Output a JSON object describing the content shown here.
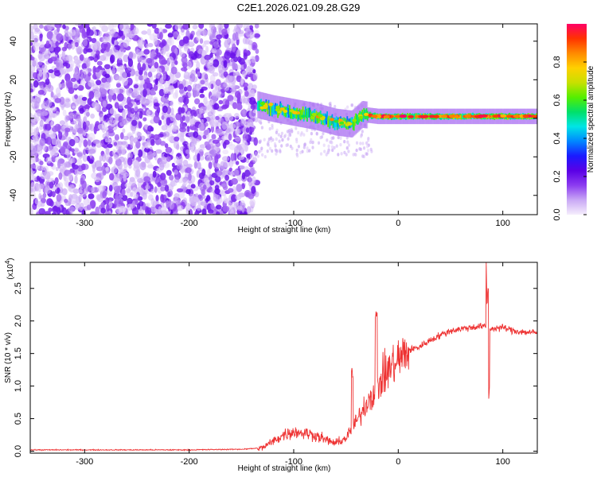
{
  "figure_title": "C2E1.2026.021.09.28.G29",
  "chart_data": [
    {
      "type": "heatmap",
      "title": "C2E1.2026.021.09.28.G29",
      "xlabel": "Height of straight line (km)",
      "ylabel": "Frequency (Hz)",
      "xlim": [
        -352,
        133
      ],
      "ylim": [
        -50,
        49
      ],
      "xticks": [
        -300,
        -200,
        -100,
        0,
        100
      ],
      "yticks": [
        -40,
        -20,
        0,
        20,
        40
      ],
      "xtick_labels": [
        "-300",
        "-200",
        "-100",
        "0",
        "100"
      ],
      "ytick_labels": [
        "-40",
        "-20",
        "0",
        "20",
        "40"
      ],
      "description_series": [
        {
          "name": "noise region",
          "x_range": [
            -352,
            -135
          ],
          "y_range": [
            -50,
            49
          ]
        },
        {
          "name": "signal trace",
          "x": [
            -135,
            -120,
            -100,
            -80,
            -60,
            -45,
            -35,
            -20,
            0,
            20,
            40,
            60,
            80,
            100,
            133
          ],
          "y": [
            7,
            5,
            3,
            1,
            -2,
            -3,
            2,
            1,
            1,
            1,
            1,
            1,
            1,
            1,
            1
          ]
        }
      ],
      "colorbar": {
        "label": "Normalized spectral amplitude",
        "range": [
          0.0,
          1.0
        ],
        "ticks": [
          0.0,
          0.2,
          0.4,
          0.6,
          0.8
        ],
        "tick_labels": [
          "0.0",
          "0.2",
          "0.4",
          "0.6",
          "0.8"
        ],
        "colors": [
          "#f5eefc",
          "#c9a8f5",
          "#8c3cf0",
          "#5a00e6",
          "#1a1aff",
          "#0088ff",
          "#00e5e5",
          "#00e06a",
          "#55ee00",
          "#c8e000",
          "#ffd000",
          "#ff8a00",
          "#ff3300",
          "#ff0066"
        ]
      }
    },
    {
      "type": "line",
      "xlabel": "Height of straight line (km)",
      "ylabel": "SNR (10 * v/v)",
      "scale_label": "(x10",
      "scale_exp": "4",
      "xlim": [
        -352,
        133
      ],
      "ylim": [
        -0.03,
        2.9
      ],
      "xticks": [
        -300,
        -200,
        -100,
        0,
        100
      ],
      "yticks": [
        0.0,
        0.5,
        1.0,
        1.5,
        2.0,
        2.5
      ],
      "xtick_labels": [
        "-300",
        "-200",
        "-100",
        "0",
        "100"
      ],
      "ytick_labels": [
        "0.0",
        "0.5",
        "1.0",
        "1.5",
        "2.0",
        "2.5"
      ],
      "series": [
        {
          "name": "SNR",
          "color": "#ee3333",
          "x": [
            -352,
            -300,
            -250,
            -200,
            -150,
            -130,
            -120,
            -110,
            -100,
            -90,
            -80,
            -70,
            -60,
            -50,
            -40,
            -30,
            -20,
            -10,
            0,
            10,
            20,
            30,
            40,
            50,
            60,
            70,
            80,
            85,
            90,
            100,
            110,
            120,
            133
          ],
          "y": [
            0.02,
            0.02,
            0.02,
            0.02,
            0.03,
            0.05,
            0.15,
            0.25,
            0.3,
            0.28,
            0.25,
            0.18,
            0.12,
            0.2,
            0.45,
            0.75,
            1.0,
            1.25,
            1.4,
            1.55,
            1.6,
            1.7,
            1.78,
            1.85,
            1.88,
            1.9,
            1.92,
            1.9,
            1.88,
            1.9,
            1.85,
            1.83,
            1.82
          ]
        }
      ]
    }
  ]
}
